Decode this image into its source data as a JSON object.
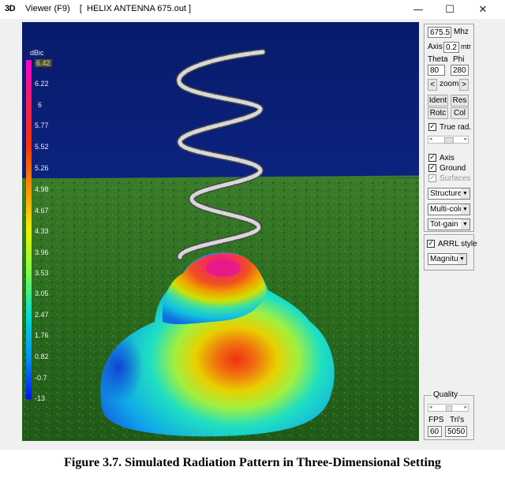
{
  "window": {
    "app_icon_text": "3D",
    "title": "Viewer (F9)    [  HELIX ANTENNA 675.out ]",
    "controls": {
      "minimize": "—",
      "maximize": "☐",
      "close": "✕"
    }
  },
  "scale": {
    "unit": "dBic",
    "labels": [
      "6.42",
      "6.22",
      "6",
      "5.77",
      "5.52",
      "5.26",
      "4.98",
      "4.67",
      "4.33",
      "3.96",
      "3.53",
      "3.05",
      "2.47",
      "1.76",
      "0.82",
      "-0.7",
      "-13"
    ]
  },
  "panel": {
    "frequency": {
      "value": "675.5",
      "unit": "Mhz"
    },
    "axis": {
      "label": "Axis",
      "value": "0.2",
      "unit": "mtr"
    },
    "theta": {
      "label": "Theta",
      "value": "80"
    },
    "phi": {
      "label": "Phi",
      "value": "280"
    },
    "zoom": {
      "left": "<",
      "label": "zoom",
      "right": ">"
    },
    "buttons": {
      "ident": "Ident",
      "res": "Res",
      "rotc": "Rotc",
      "col": "Col"
    },
    "true_rad": {
      "label": "True rad.",
      "checked": true
    },
    "axis_check": {
      "label": "Axis",
      "checked": true
    },
    "ground_check": {
      "label": "Ground",
      "checked": true
    },
    "surfaces_check": {
      "label": "Surfaces",
      "checked": true,
      "disabled": true
    },
    "dropdowns": {
      "structure": "Structure",
      "color_mode": "Multi-colo",
      "gain": "Tot-gain"
    },
    "arrl": {
      "label": "ARRL style",
      "checked": true,
      "dropdown": "Magnitu"
    },
    "quality": {
      "label": "Quality"
    },
    "fps": {
      "label": "FPS",
      "value": "60"
    },
    "tris": {
      "label": "Tri's",
      "value": "5050"
    }
  },
  "caption": "Figure 3.7. Simulated Radiation Pattern in Three-Dimensional Setting",
  "colors": {
    "sky": "#0a1f70",
    "ground": "#2c6a1c",
    "pattern_peak": "#e0208a",
    "pattern_low": "#1030d0"
  }
}
